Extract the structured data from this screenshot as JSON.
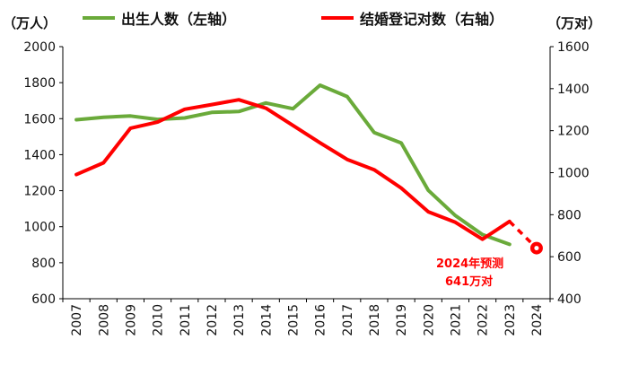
{
  "chart_data": {
    "type": "line",
    "x": [
      "2007",
      "2008",
      "2009",
      "2010",
      "2011",
      "2012",
      "2013",
      "2014",
      "2015",
      "2016",
      "2017",
      "2018",
      "2019",
      "2020",
      "2021",
      "2022",
      "2023",
      "2024"
    ],
    "left_axis": {
      "unit": "（万人）",
      "ylim": [
        600,
        2000
      ],
      "ticks": [
        600,
        800,
        1000,
        1200,
        1400,
        1600,
        1800,
        2000
      ]
    },
    "right_axis": {
      "unit": "（万对）",
      "ylim": [
        400,
        1600
      ],
      "ticks": [
        400,
        600,
        800,
        1000,
        1200,
        1400,
        1600
      ]
    },
    "series": [
      {
        "name": "出生人数（左轴）",
        "axis": "left",
        "color": "#6aaa3a",
        "values": [
          1594,
          1608,
          1615,
          1596,
          1604,
          1635,
          1640,
          1687,
          1655,
          1786,
          1723,
          1523,
          1465,
          1202,
          1062,
          956,
          902,
          null
        ]
      },
      {
        "name": "结婚登记对数（右轴）",
        "axis": "right",
        "color": "#ff0000",
        "values": [
          991,
          1047,
          1212,
          1241,
          1302,
          1324,
          1347,
          1307,
          1225,
          1142,
          1063,
          1014,
          927,
          814,
          764,
          683,
          768,
          null
        ],
        "forecast": {
          "from": "2023",
          "to": "2024",
          "value": 641,
          "style": "dashed"
        }
      }
    ],
    "annotation": {
      "line1": "2024年预测",
      "line2": "641万对"
    },
    "grid": false,
    "legend": "top"
  }
}
